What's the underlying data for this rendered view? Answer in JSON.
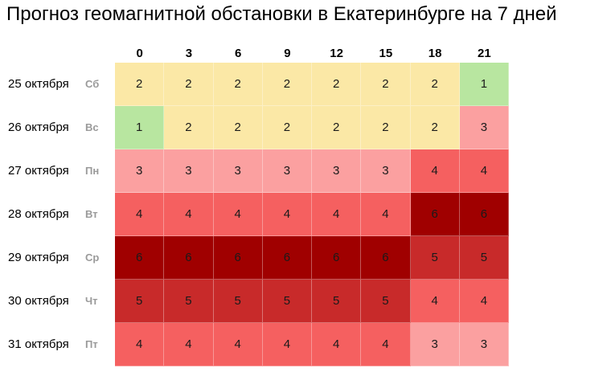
{
  "title": "Прогноз геомагнитной обстановки в Екатеринбурге на 7 дней",
  "hours": [
    "0",
    "3",
    "6",
    "9",
    "12",
    "15",
    "18",
    "21"
  ],
  "colors": {
    "1": "#b8e6a0",
    "2": "#fbe8a6",
    "3": "#fba0a0",
    "4": "#f56060",
    "5": "#c82a2a",
    "6": "#a00000"
  },
  "days": [
    {
      "date": "25 октября",
      "dow": "Сб",
      "values": [
        "2",
        "2",
        "2",
        "2",
        "2",
        "2",
        "2",
        "1"
      ]
    },
    {
      "date": "26 октября",
      "dow": "Вс",
      "values": [
        "1",
        "2",
        "2",
        "2",
        "2",
        "2",
        "2",
        "3"
      ]
    },
    {
      "date": "27 октября",
      "dow": "Пн",
      "values": [
        "3",
        "3",
        "3",
        "3",
        "3",
        "3",
        "4",
        "4"
      ]
    },
    {
      "date": "28 октября",
      "dow": "Вт",
      "values": [
        "4",
        "4",
        "4",
        "4",
        "4",
        "4",
        "6",
        "6"
      ]
    },
    {
      "date": "29 октября",
      "dow": "Ср",
      "values": [
        "6",
        "6",
        "6",
        "6",
        "6",
        "6",
        "5",
        "5"
      ]
    },
    {
      "date": "30 октября",
      "dow": "Чт",
      "values": [
        "5",
        "5",
        "5",
        "5",
        "5",
        "5",
        "4",
        "4"
      ]
    },
    {
      "date": "31 октября",
      "dow": "Пт",
      "values": [
        "4",
        "4",
        "4",
        "4",
        "4",
        "4",
        "3",
        "3"
      ]
    }
  ]
}
